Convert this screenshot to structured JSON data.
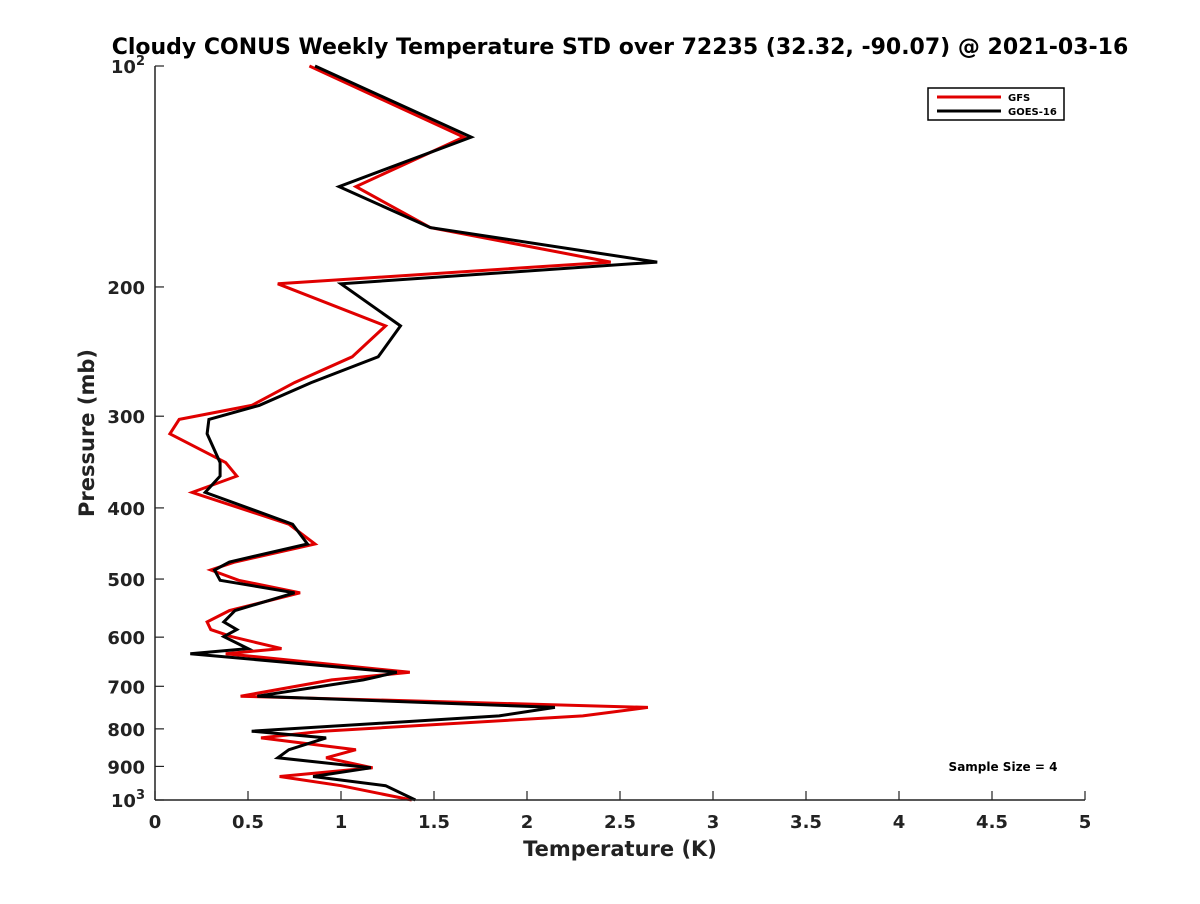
{
  "chart_data": {
    "type": "line",
    "title": "Cloudy CONUS Weekly Temperature STD over 72235 (32.32, -90.07) @ 2021-03-16",
    "xlabel": "Temperature (K)",
    "ylabel": "Pressure (mb)",
    "xlim": [
      0,
      5
    ],
    "ylim": [
      100,
      1000
    ],
    "y_scale": "log",
    "y_reversed": true,
    "x_ticks": [
      {
        "value": 0,
        "label": "0"
      },
      {
        "value": 0.5,
        "label": "0.5"
      },
      {
        "value": 1,
        "label": "1"
      },
      {
        "value": 1.5,
        "label": "1.5"
      },
      {
        "value": 2,
        "label": "2"
      },
      {
        "value": 2.5,
        "label": "2.5"
      },
      {
        "value": 3,
        "label": "3"
      },
      {
        "value": 3.5,
        "label": "3.5"
      },
      {
        "value": 4,
        "label": "4"
      },
      {
        "value": 4.5,
        "label": "4.5"
      },
      {
        "value": 5,
        "label": "5"
      }
    ],
    "y_ticks": [
      {
        "value": 100,
        "base": "10",
        "exp": "2"
      },
      {
        "value": 200,
        "label": "200"
      },
      {
        "value": 300,
        "label": "300"
      },
      {
        "value": 400,
        "label": "400"
      },
      {
        "value": 500,
        "label": "500"
      },
      {
        "value": 600,
        "label": "600"
      },
      {
        "value": 700,
        "label": "700"
      },
      {
        "value": 800,
        "label": "800"
      },
      {
        "value": 900,
        "label": "900"
      },
      {
        "value": 1000,
        "base": "10",
        "exp": "3"
      }
    ],
    "grid": false,
    "legend_position": "top-right",
    "annotation": "Sample Size = 4",
    "series": [
      {
        "name": "GFS",
        "color": "#e00000",
        "points": [
          [
            0.83,
            100
          ],
          [
            1.66,
            125
          ],
          [
            1.08,
            146
          ],
          [
            1.48,
            166
          ],
          [
            2.45,
            185
          ],
          [
            0.66,
            198
          ],
          [
            1.24,
            226
          ],
          [
            1.06,
            249
          ],
          [
            0.75,
            270
          ],
          [
            0.52,
            290
          ],
          [
            0.13,
            303
          ],
          [
            0.08,
            317
          ],
          [
            0.38,
            347
          ],
          [
            0.44,
            362
          ],
          [
            0.2,
            381
          ],
          [
            0.72,
            421
          ],
          [
            0.86,
            448
          ],
          [
            0.43,
            474
          ],
          [
            0.3,
            486
          ],
          [
            0.45,
            502
          ],
          [
            0.78,
            522
          ],
          [
            0.4,
            552
          ],
          [
            0.28,
            572
          ],
          [
            0.3,
            586
          ],
          [
            0.41,
            599
          ],
          [
            0.68,
            622
          ],
          [
            0.38,
            632
          ],
          [
            1.37,
            670
          ],
          [
            0.95,
            686
          ],
          [
            0.46,
            722
          ],
          [
            2.65,
            748
          ],
          [
            2.3,
            768
          ],
          [
            0.9,
            806
          ],
          [
            0.57,
            823
          ],
          [
            1.08,
            854
          ],
          [
            0.92,
            876
          ],
          [
            1.17,
            904
          ],
          [
            0.67,
            929
          ],
          [
            1.0,
            956
          ],
          [
            1.38,
            1000
          ]
        ]
      },
      {
        "name": "GOES-16",
        "color": "#000000",
        "points": [
          [
            0.86,
            100
          ],
          [
            1.7,
            125
          ],
          [
            0.99,
            146
          ],
          [
            1.48,
            166
          ],
          [
            2.7,
            185
          ],
          [
            1.0,
            198
          ],
          [
            1.32,
            226
          ],
          [
            1.2,
            249
          ],
          [
            0.84,
            270
          ],
          [
            0.56,
            290
          ],
          [
            0.29,
            303
          ],
          [
            0.28,
            317
          ],
          [
            0.35,
            347
          ],
          [
            0.35,
            362
          ],
          [
            0.27,
            381
          ],
          [
            0.74,
            421
          ],
          [
            0.82,
            448
          ],
          [
            0.4,
            474
          ],
          [
            0.32,
            486
          ],
          [
            0.35,
            502
          ],
          [
            0.75,
            522
          ],
          [
            0.43,
            552
          ],
          [
            0.37,
            572
          ],
          [
            0.44,
            586
          ],
          [
            0.37,
            599
          ],
          [
            0.5,
            622
          ],
          [
            0.19,
            632
          ],
          [
            1.3,
            670
          ],
          [
            1.12,
            686
          ],
          [
            0.55,
            722
          ],
          [
            2.15,
            748
          ],
          [
            1.85,
            768
          ],
          [
            0.52,
            806
          ],
          [
            0.92,
            823
          ],
          [
            0.72,
            854
          ],
          [
            0.66,
            876
          ],
          [
            1.16,
            904
          ],
          [
            0.85,
            929
          ],
          [
            1.24,
            956
          ],
          [
            1.4,
            1000
          ]
        ]
      }
    ]
  }
}
